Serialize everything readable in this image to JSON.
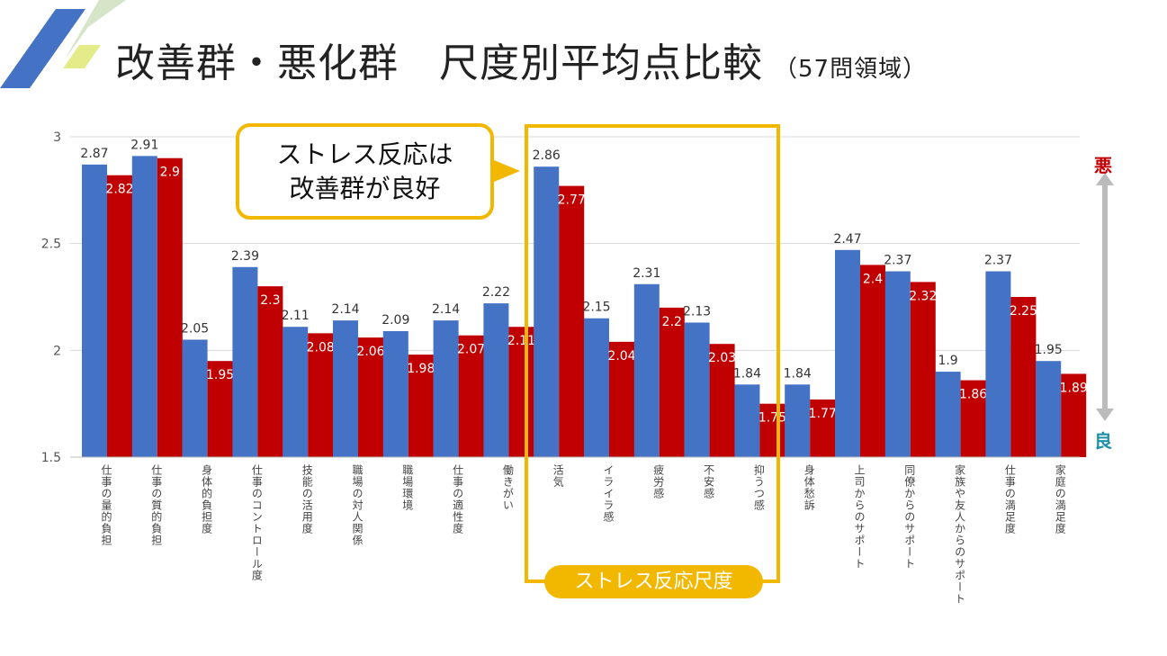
{
  "title": {
    "main": "改善群・悪化群　尺度別平均点比較",
    "sub": "（57問領域）"
  },
  "callout": {
    "line1": "ストレス反応は",
    "line2": "改善群が良好"
  },
  "group_label": "ストレス反応尺度",
  "side_labels": {
    "top": "悪",
    "bottom": "良",
    "top_color": "#c00000",
    "bottom_color": "#1f8fa8"
  },
  "colors": {
    "blue": "#4472c4",
    "red": "#c00000",
    "accent": "#f2b800"
  },
  "chart_data": {
    "type": "bar",
    "title": "",
    "xlabel": "",
    "ylabel": "",
    "ylim": [
      1.5,
      3
    ],
    "yticks": [
      1.5,
      2,
      2.5,
      3
    ],
    "ytick_labels": [
      "1.5",
      "2",
      "2.5",
      "3"
    ],
    "grid": true,
    "categories": [
      "仕事の量的負担",
      "仕事の質的負担",
      "身体的負担度",
      "仕事のコントロール度",
      "技能の活用度",
      "職場の対人関係",
      "職場環境",
      "仕事の適性度",
      "働きがい",
      "活気",
      "イライラ感",
      "疲労感",
      "不安感",
      "抑うつ感",
      "身体愁訴",
      "上司からのサポート",
      "同僚からのサポート",
      "家族や友人からのサポート",
      "仕事の満足度",
      "家庭の満足度"
    ],
    "series": [
      {
        "name": "series-blue",
        "color": "#4472c4",
        "values": [
          2.87,
          2.91,
          2.05,
          2.39,
          2.11,
          2.14,
          2.09,
          2.14,
          2.22,
          2.86,
          2.15,
          2.31,
          2.13,
          1.84,
          1.84,
          2.47,
          2.37,
          1.9,
          2.37,
          1.95
        ]
      },
      {
        "name": "series-red",
        "color": "#c00000",
        "values": [
          2.82,
          2.9,
          1.95,
          2.3,
          2.08,
          2.06,
          1.98,
          2.07,
          2.11,
          2.77,
          2.04,
          2.2,
          2.03,
          1.75,
          1.77,
          2.4,
          2.32,
          1.86,
          2.25,
          1.89
        ]
      }
    ]
  }
}
